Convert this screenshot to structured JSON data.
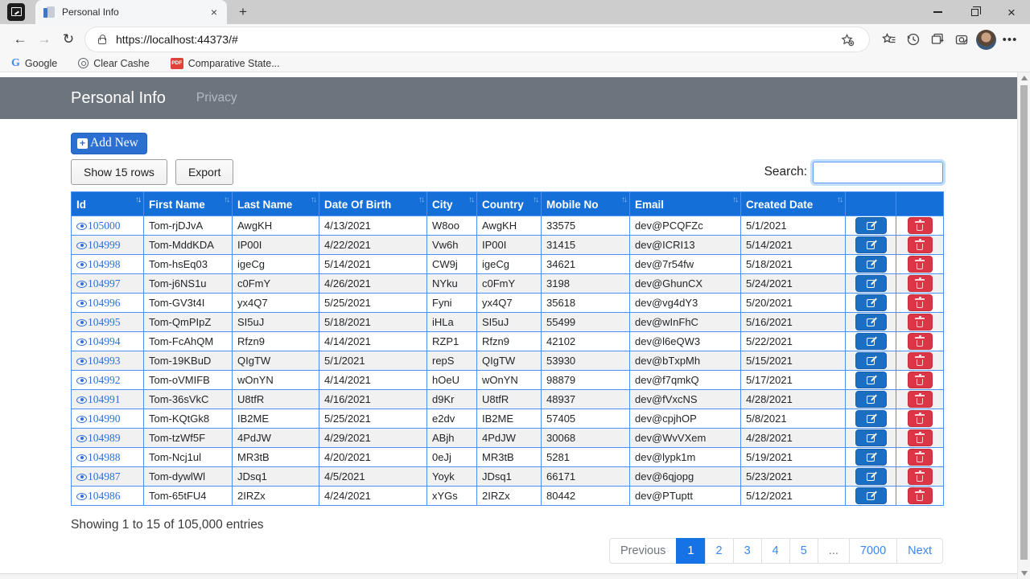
{
  "browser": {
    "tab": {
      "title": "Personal Info"
    },
    "url": "https://localhost:44373/#",
    "bookmarks": [
      {
        "label": "Google"
      },
      {
        "label": "Clear Cashe"
      },
      {
        "label": "Comparative State..."
      }
    ]
  },
  "navbar": {
    "brand": "Personal Info",
    "links": [
      {
        "label": "Privacy"
      }
    ]
  },
  "controls": {
    "add_new": "Add New",
    "show_rows": "Show 15 rows",
    "export": "Export",
    "search_label": "Search:",
    "search_value": ""
  },
  "table": {
    "headers": [
      {
        "label": "Id",
        "sort": "desc"
      },
      {
        "label": "First Name",
        "sort": "both"
      },
      {
        "label": "Last Name",
        "sort": "both"
      },
      {
        "label": "Date Of Birth",
        "sort": "both"
      },
      {
        "label": "City",
        "sort": "both"
      },
      {
        "label": "Country",
        "sort": "both"
      },
      {
        "label": "Mobile No",
        "sort": "both"
      },
      {
        "label": "Email",
        "sort": "both"
      },
      {
        "label": "Created Date",
        "sort": "both"
      },
      {
        "label": "",
        "sort": "none"
      },
      {
        "label": "",
        "sort": "none"
      }
    ],
    "rows": [
      {
        "id": "105000",
        "first_name": "Tom-rjDJvA",
        "last_name": "AwgKH",
        "dob": "4/13/2021",
        "city": "W8oo",
        "country": "AwgKH",
        "mobile": "33575",
        "email": "dev@PCQFZc",
        "created": "5/1/2021"
      },
      {
        "id": "104999",
        "first_name": "Tom-MddKDA",
        "last_name": "IP00I",
        "dob": "4/22/2021",
        "city": "Vw6h",
        "country": "IP00I",
        "mobile": "31415",
        "email": "dev@ICRI13",
        "created": "5/14/2021"
      },
      {
        "id": "104998",
        "first_name": "Tom-hsEq03",
        "last_name": "igeCg",
        "dob": "5/14/2021",
        "city": "CW9j",
        "country": "igeCg",
        "mobile": "34621",
        "email": "dev@7r54fw",
        "created": "5/18/2021"
      },
      {
        "id": "104997",
        "first_name": "Tom-j6NS1u",
        "last_name": "c0FmY",
        "dob": "4/26/2021",
        "city": "NYku",
        "country": "c0FmY",
        "mobile": "3198",
        "email": "dev@GhunCX",
        "created": "5/24/2021"
      },
      {
        "id": "104996",
        "first_name": "Tom-GV3t4I",
        "last_name": "yx4Q7",
        "dob": "5/25/2021",
        "city": "Fyni",
        "country": "yx4Q7",
        "mobile": "35618",
        "email": "dev@vg4dY3",
        "created": "5/20/2021"
      },
      {
        "id": "104995",
        "first_name": "Tom-QmPIpZ",
        "last_name": "SI5uJ",
        "dob": "5/18/2021",
        "city": "iHLa",
        "country": "SI5uJ",
        "mobile": "55499",
        "email": "dev@wInFhC",
        "created": "5/16/2021"
      },
      {
        "id": "104994",
        "first_name": "Tom-FcAhQM",
        "last_name": "Rfzn9",
        "dob": "4/14/2021",
        "city": "RZP1",
        "country": "Rfzn9",
        "mobile": "42102",
        "email": "dev@l6eQW3",
        "created": "5/22/2021"
      },
      {
        "id": "104993",
        "first_name": "Tom-19KBuD",
        "last_name": "QIgTW",
        "dob": "5/1/2021",
        "city": "repS",
        "country": "QIgTW",
        "mobile": "53930",
        "email": "dev@bTxpMh",
        "created": "5/15/2021"
      },
      {
        "id": "104992",
        "first_name": "Tom-oVMIFB",
        "last_name": "wOnYN",
        "dob": "4/14/2021",
        "city": "hOeU",
        "country": "wOnYN",
        "mobile": "98879",
        "email": "dev@f7qmkQ",
        "created": "5/17/2021"
      },
      {
        "id": "104991",
        "first_name": "Tom-36sVkC",
        "last_name": "U8tfR",
        "dob": "4/16/2021",
        "city": "d9Kr",
        "country": "U8tfR",
        "mobile": "48937",
        "email": "dev@fVxcNS",
        "created": "4/28/2021"
      },
      {
        "id": "104990",
        "first_name": "Tom-KQtGk8",
        "last_name": "IB2ME",
        "dob": "5/25/2021",
        "city": "e2dv",
        "country": "IB2ME",
        "mobile": "57405",
        "email": "dev@cpjhOP",
        "created": "5/8/2021"
      },
      {
        "id": "104989",
        "first_name": "Tom-tzWf5F",
        "last_name": "4PdJW",
        "dob": "4/29/2021",
        "city": "ABjh",
        "country": "4PdJW",
        "mobile": "30068",
        "email": "dev@WvVXem",
        "created": "4/28/2021"
      },
      {
        "id": "104988",
        "first_name": "Tom-Ncj1ul",
        "last_name": "MR3tB",
        "dob": "4/20/2021",
        "city": "0eJj",
        "country": "MR3tB",
        "mobile": "5281",
        "email": "dev@lypk1m",
        "created": "5/19/2021"
      },
      {
        "id": "104987",
        "first_name": "Tom-dywlWl",
        "last_name": "JDsq1",
        "dob": "4/5/2021",
        "city": "Yoyk",
        "country": "JDsq1",
        "mobile": "66171",
        "email": "dev@6qjopg",
        "created": "5/23/2021"
      },
      {
        "id": "104986",
        "first_name": "Tom-65tFU4",
        "last_name": "2IRZx",
        "dob": "4/24/2021",
        "city": "xYGs",
        "country": "2IRZx",
        "mobile": "80442",
        "email": "dev@PTuptt",
        "created": "5/12/2021"
      }
    ]
  },
  "footer": {
    "summary": "Showing 1 to 15 of 105,000 entries"
  },
  "pagination": {
    "items": [
      {
        "label": "Previous",
        "type": "disabled",
        "name": "page-previous"
      },
      {
        "label": "1",
        "type": "active",
        "name": "page-number-1"
      },
      {
        "label": "2",
        "type": "page",
        "name": "page-number-2"
      },
      {
        "label": "3",
        "type": "page",
        "name": "page-number-3"
      },
      {
        "label": "4",
        "type": "page",
        "name": "page-number-4"
      },
      {
        "label": "5",
        "type": "page",
        "name": "page-number-5"
      },
      {
        "label": "...",
        "type": "disabled",
        "name": "page-ellipsis"
      },
      {
        "label": "7000",
        "type": "page",
        "name": "page-number-7000"
      },
      {
        "label": "Next",
        "type": "page",
        "name": "page-next"
      }
    ]
  },
  "icons": {
    "view-icon": "eye ellipse with pupil",
    "edit-icon": "pencil-square",
    "delete-icon": "trash can",
    "sort-icon": "up-down arrows",
    "lock-icon": "padlock",
    "refresh-icon": "circular arrow"
  },
  "colors": {
    "table_header_blue": "#146fd8",
    "table_border_blue": "#4a90f5",
    "primary_button_blue": "#2b6fd1",
    "edit_button_blue": "#1b6ec2",
    "delete_button_red": "#dc3545",
    "active_page_blue": "#1673e6",
    "navbar_gray": "#6c757d"
  }
}
